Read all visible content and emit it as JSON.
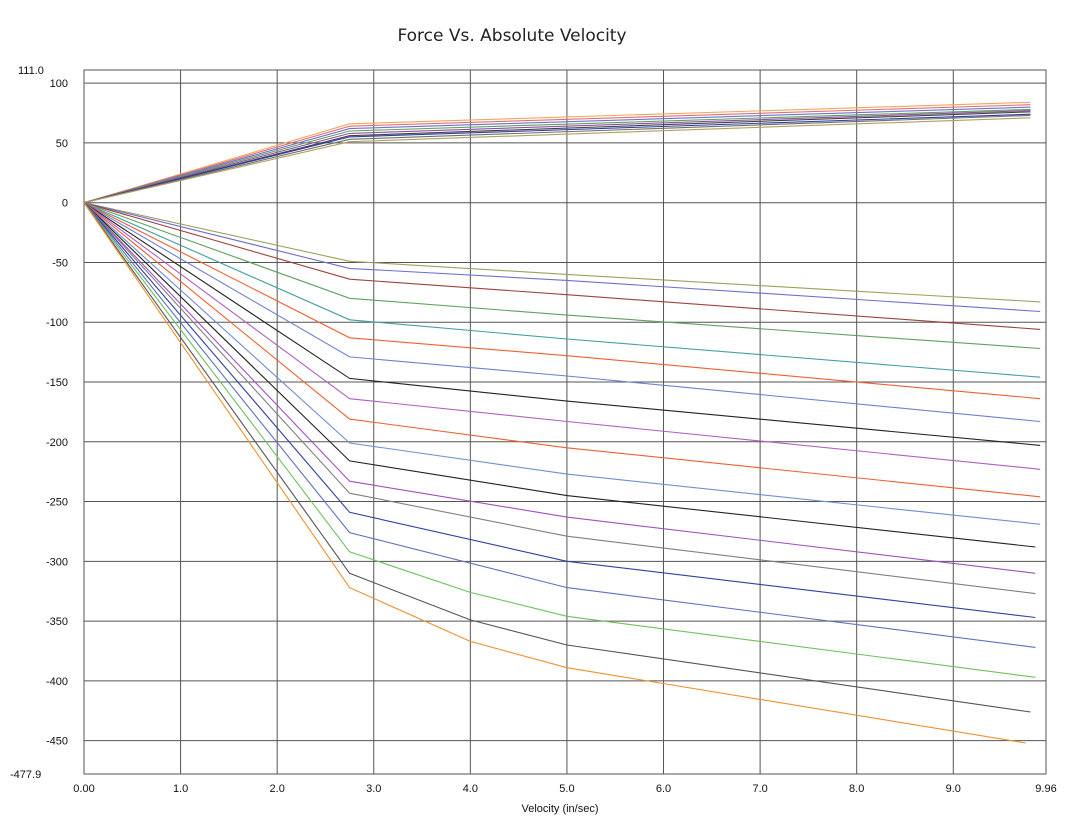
{
  "chart_data": {
    "type": "line",
    "title": "Force Vs. Absolute Velocity",
    "xlabel": "Velocity (in/sec)",
    "ylabel": "",
    "xlim": [
      0,
      9.96
    ],
    "ylim": [
      -477.9,
      111.0
    ],
    "x_ticks": [
      "0.00",
      "1.0",
      "2.0",
      "3.0",
      "4.0",
      "5.0",
      "6.0",
      "7.0",
      "8.0",
      "9.0",
      "9.96"
    ],
    "x_tick_values": [
      0,
      1,
      2,
      3,
      4,
      5,
      6,
      7,
      8,
      9,
      9.96
    ],
    "y_ticks": [
      "100",
      "50",
      "0",
      "-50",
      "-100",
      "-150",
      "-200",
      "-250",
      "-300",
      "-350",
      "-400",
      "-450"
    ],
    "y_tick_values": [
      100,
      50,
      0,
      -50,
      -100,
      -150,
      -200,
      -250,
      -300,
      -350,
      -400,
      -450
    ],
    "y_extremes": [
      "111.0",
      "-477.9"
    ],
    "y_extreme_values": [
      111.0,
      -477.9
    ],
    "grid": true,
    "legend": "none",
    "series": [
      {
        "color": "#f4a460",
        "x": [
          0,
          2.75,
          9.8
        ],
        "y": [
          0,
          66,
          84
        ]
      },
      {
        "color": "#e07070",
        "x": [
          0,
          2.75,
          9.8
        ],
        "y": [
          0,
          64,
          82
        ]
      },
      {
        "color": "#7070d0",
        "x": [
          0,
          2.75,
          9.8
        ],
        "y": [
          0,
          62,
          80
        ]
      },
      {
        "color": "#60a060",
        "x": [
          0,
          2.75,
          9.8
        ],
        "y": [
          0,
          60,
          78
        ]
      },
      {
        "color": "#9050a0",
        "x": [
          0,
          2.75,
          9.8
        ],
        "y": [
          0,
          58,
          77
        ]
      },
      {
        "color": "#444444",
        "x": [
          0,
          2.75,
          9.8
        ],
        "y": [
          0,
          56,
          76
        ]
      },
      {
        "color": "#3040a0",
        "x": [
          0,
          2.75,
          9.8
        ],
        "y": [
          0,
          55,
          74
        ]
      },
      {
        "color": "#707070",
        "x": [
          0,
          2.75,
          9.8
        ],
        "y": [
          0,
          53,
          73
        ]
      },
      {
        "color": "#b0a060",
        "x": [
          0,
          2.75,
          9.8
        ],
        "y": [
          0,
          51,
          71
        ]
      },
      {
        "color": "#a0a060",
        "x": [
          0,
          2.75,
          5.0,
          9.9
        ],
        "y": [
          0,
          -49,
          -60,
          -83
        ]
      },
      {
        "color": "#7070d0",
        "x": [
          0,
          2.75,
          5.0,
          9.9
        ],
        "y": [
          0,
          -55,
          -65,
          -91
        ]
      },
      {
        "color": "#a04040",
        "x": [
          0,
          2.75,
          5.0,
          9.9
        ],
        "y": [
          0,
          -64,
          -77,
          -106
        ]
      },
      {
        "color": "#60a060",
        "x": [
          0,
          2.75,
          5.0,
          9.9
        ],
        "y": [
          0,
          -80,
          -94,
          -122
        ]
      },
      {
        "color": "#40a0a0",
        "x": [
          0,
          2.75,
          5.0,
          9.9
        ],
        "y": [
          0,
          -98,
          -114,
          -146
        ]
      },
      {
        "color": "#f06030",
        "x": [
          0,
          2.75,
          5.0,
          9.9
        ],
        "y": [
          0,
          -113,
          -128,
          -164
        ]
      },
      {
        "color": "#7080d0",
        "x": [
          0,
          2.75,
          5.0,
          9.9
        ],
        "y": [
          0,
          -129,
          -145,
          -183
        ]
      },
      {
        "color": "#222222",
        "x": [
          0,
          2.75,
          5.0,
          9.9
        ],
        "y": [
          0,
          -147,
          -166,
          -203
        ]
      },
      {
        "color": "#b060c0",
        "x": [
          0,
          2.75,
          5.0,
          9.9
        ],
        "y": [
          0,
          -164,
          -183,
          -223
        ]
      },
      {
        "color": "#f06030",
        "x": [
          0,
          2.75,
          5.0,
          9.9
        ],
        "y": [
          0,
          -181,
          -205,
          -246
        ]
      },
      {
        "color": "#7090d0",
        "x": [
          0,
          2.75,
          5.0,
          9.9
        ],
        "y": [
          0,
          -201,
          -227,
          -269
        ]
      },
      {
        "color": "#222222",
        "x": [
          0,
          2.75,
          5.0,
          9.85
        ],
        "y": [
          0,
          -216,
          -245,
          -288
        ]
      },
      {
        "color": "#a050c0",
        "x": [
          0,
          2.75,
          5.0,
          9.85
        ],
        "y": [
          0,
          -233,
          -263,
          -310
        ]
      },
      {
        "color": "#808080",
        "x": [
          0,
          2.75,
          5.0,
          9.85
        ],
        "y": [
          0,
          -243,
          -279,
          -327
        ]
      },
      {
        "color": "#3040a0",
        "x": [
          0,
          2.75,
          5.0,
          9.85
        ],
        "y": [
          0,
          -259,
          -300,
          -347
        ]
      },
      {
        "color": "#6070c0",
        "x": [
          0,
          2.75,
          5.0,
          9.85
        ],
        "y": [
          0,
          -276,
          -322,
          -372
        ]
      },
      {
        "color": "#70c060",
        "x": [
          0,
          2.75,
          4.0,
          5.0,
          9.85
        ],
        "y": [
          0,
          -292,
          -326,
          -346,
          -397
        ]
      },
      {
        "color": "#555555",
        "x": [
          0,
          2.75,
          4.0,
          5.0,
          9.8
        ],
        "y": [
          0,
          -310,
          -349,
          -370,
          -426
        ]
      },
      {
        "color": "#f09030",
        "x": [
          0,
          2.75,
          4.0,
          5.0,
          9.75
        ],
        "y": [
          0,
          -322,
          -367,
          -389,
          -452
        ]
      }
    ]
  }
}
